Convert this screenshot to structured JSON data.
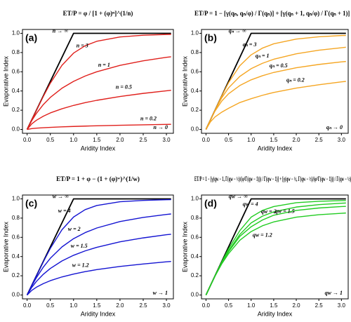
{
  "chart_data": [
    {
      "type": "line",
      "tag": "(a)",
      "equation": "ET/P = φ / [1 + (φ)ⁿ]^(1/n)",
      "x_label": "Aridity Index",
      "y_label": "Evaporative Index",
      "xlim": [
        -0.1,
        3.15
      ],
      "ylim": [
        -0.04,
        1.04
      ],
      "xticks": [
        {
          "value": 0,
          "label": "0.0"
        },
        0.5,
        {
          "value": 1,
          "label": "1.0"
        },
        1.5,
        {
          "value": 2,
          "label": "2.0"
        },
        2.5,
        {
          "value": 3,
          "label": "3.0"
        }
      ],
      "yticks": [
        {
          "value": 0,
          "label": "0.0"
        },
        0.2,
        0.4,
        0.6,
        0.8,
        {
          "value": 1,
          "label": "1.0"
        }
      ],
      "x": [
        0,
        0.1,
        0.2,
        0.35,
        0.5,
        0.75,
        1,
        1.25,
        1.5,
        2,
        2.5,
        3,
        3.1
      ],
      "series": [
        {
          "name": "n → ∞",
          "color": "#000000",
          "x": [
            0,
            1,
            3.1
          ],
          "values": [
            0,
            1,
            1
          ]
        },
        {
          "name": "n = 3",
          "color": "#e0201c",
          "values": [
            0,
            0.1,
            0.1995,
            0.345,
            0.481,
            0.667,
            0.794,
            0.871,
            0.917,
            0.962,
            0.98,
            0.988,
            0.989
          ]
        },
        {
          "name": "n = 1",
          "color": "#e0201c",
          "values": [
            0,
            0.0909,
            0.1667,
            0.2593,
            0.3333,
            0.4286,
            0.5,
            0.5556,
            0.6,
            0.6667,
            0.7143,
            0.75,
            0.7561
          ]
        },
        {
          "name": "n = 0.5",
          "color": "#e0201c",
          "values": [
            0,
            0.0577,
            0.0955,
            0.138,
            0.172,
            0.215,
            0.25,
            0.279,
            0.303,
            0.343,
            0.375,
            0.402,
            0.407
          ]
        },
        {
          "name": "n = 0.2",
          "color": "#e0201c",
          "values": [
            0,
            0.0087,
            0.0131,
            0.018,
            0.0218,
            0.027,
            0.03125,
            0.0349,
            0.0381,
            0.0437,
            0.0484,
            0.0525,
            0.0533
          ]
        }
      ],
      "annotation": "n → 0"
    },
    {
      "type": "line",
      "tag": "(b)",
      "equation": "ET/P = 1 − [γ(qₙ, qₙ/φ) / Γ(qₙ)] + [γ(qₙ + 1, qₙ/φ) / Γ(qₙ + 1)] φ",
      "x_label": "Aridity Index",
      "y_label": "Evaporative Index",
      "xlim": [
        -0.1,
        3.15
      ],
      "ylim": [
        -0.04,
        1.04
      ],
      "xticks": [
        {
          "value": 0,
          "label": "0.0"
        },
        0.5,
        {
          "value": 1,
          "label": "1.0"
        },
        1.5,
        {
          "value": 2,
          "label": "2.0"
        },
        2.5,
        {
          "value": 3,
          "label": "3.0"
        }
      ],
      "yticks": [
        {
          "value": 0,
          "label": "0.0"
        },
        0.2,
        0.4,
        0.6,
        0.8,
        {
          "value": 1,
          "label": "1.0"
        }
      ],
      "x": [
        0,
        0.1,
        0.2,
        0.35,
        0.5,
        0.75,
        1,
        1.25,
        1.5,
        2,
        2.5,
        3,
        3.1
      ],
      "series": [
        {
          "name": "qₙ → ∞",
          "color": "#000000",
          "x": [
            0,
            1,
            3.1
          ],
          "values": [
            0,
            1,
            1
          ]
        },
        {
          "name": "qₙ = 3",
          "color": "#f5a623",
          "values": [
            0,
            0.1,
            0.2,
            0.349,
            0.486,
            0.663,
            0.776,
            0.846,
            0.891,
            0.94,
            0.964,
            0.977,
            0.978
          ]
        },
        {
          "name": "qₙ = 1",
          "color": "#f5a623",
          "values": [
            0,
            0.1,
            0.1987,
            0.33,
            0.432,
            0.552,
            0.632,
            0.688,
            0.73,
            0.787,
            0.824,
            0.85,
            0.855
          ]
        },
        {
          "name": "qₙ = 0.5",
          "color": "#f5a623",
          "values": [
            0,
            0.0997,
            0.191,
            0.296,
            0.371,
            0.457,
            0.516,
            0.559,
            0.593,
            0.642,
            0.676,
            0.703,
            0.707
          ]
        },
        {
          "name": "qₙ = 0.2",
          "color": "#f5a623",
          "values": [
            0,
            0.08,
            0.13,
            0.18,
            0.22,
            0.28,
            0.32,
            0.355,
            0.385,
            0.43,
            0.465,
            0.495,
            0.5
          ]
        }
      ],
      "annotation": "qₙ → 0"
    },
    {
      "type": "line",
      "tag": "(c)",
      "equation": "ET/P = 1 + φ − (1 + (φ)ʷ)^(1/w)",
      "x_label": "Aridity Index",
      "y_label": "Evaporative Index",
      "xlim": [
        -0.1,
        3.15
      ],
      "ylim": [
        -0.04,
        1.04
      ],
      "xticks": [
        {
          "value": 0,
          "label": "0.0"
        },
        0.5,
        {
          "value": 1,
          "label": "1.0"
        },
        1.5,
        {
          "value": 2,
          "label": "2.0"
        },
        2.5,
        {
          "value": 3,
          "label": "3.0"
        }
      ],
      "yticks": [
        {
          "value": 0,
          "label": "0.0"
        },
        0.2,
        0.4,
        0.6,
        0.8,
        {
          "value": 1,
          "label": "1.0"
        }
      ],
      "x": [
        0,
        0.1,
        0.2,
        0.35,
        0.5,
        0.75,
        1,
        1.25,
        1.5,
        2,
        2.5,
        3,
        3.1
      ],
      "series": [
        {
          "name": "w → ∞",
          "color": "#000000",
          "x": [
            0,
            1,
            3.1
          ],
          "values": [
            0,
            1,
            1
          ]
        },
        {
          "name": "w = 4",
          "color": "#1414d2",
          "values": [
            0,
            0.1,
            0.1996,
            0.346,
            0.485,
            0.679,
            0.811,
            0.888,
            0.931,
            0.97,
            0.984,
            0.991,
            0.992
          ]
        },
        {
          "name": "w = 2",
          "color": "#1414d2",
          "values": [
            0,
            0.095,
            0.18,
            0.291,
            0.382,
            0.5,
            0.586,
            0.649,
            0.697,
            0.764,
            0.807,
            0.838,
            0.843
          ]
        },
        {
          "name": "w = 1.5",
          "color": "#1414d2",
          "values": [
            0,
            0.079,
            0.141,
            0.216,
            0.276,
            0.354,
            0.413,
            0.459,
            0.496,
            0.553,
            0.594,
            0.627,
            0.632
          ]
        },
        {
          "name": "w = 1.2",
          "color": "#1414d2",
          "values": [
            0,
            0.048,
            0.081,
            0.119,
            0.149,
            0.188,
            0.218,
            0.243,
            0.264,
            0.297,
            0.323,
            0.345,
            0.349
          ]
        }
      ],
      "annotation": "w → 1"
    },
    {
      "type": "line",
      "tag": "(d)",
      "equation": "ET/P = 1 − [γ(qw − 1, Γ(qw − ½)/(φ²Γ(qw − 1))) / Γ(qw − 1)] + [γ(qw − ½, Γ(qw − ½)/(φ²Γ(qw − 1))) / Γ(qw − ½)] φ",
      "x_label": "Aridity Index",
      "y_label": "Evaporative Index",
      "xlim": [
        -0.1,
        3.15
      ],
      "ylim": [
        -0.04,
        1.04
      ],
      "xticks": [
        {
          "value": 0,
          "label": "0.0"
        },
        0.5,
        {
          "value": 1,
          "label": "1.0"
        },
        1.5,
        {
          "value": 2,
          "label": "2.0"
        },
        2.5,
        {
          "value": 3,
          "label": "3.0"
        }
      ],
      "yticks": [
        {
          "value": 0,
          "label": "0.0"
        },
        0.2,
        0.4,
        0.6,
        0.8,
        {
          "value": 1,
          "label": "1.0"
        }
      ],
      "x": [
        0,
        0.1,
        0.2,
        0.35,
        0.5,
        0.75,
        1,
        1.25,
        1.5,
        2,
        2.5,
        3,
        3.1
      ],
      "series": [
        {
          "name": "qw → ∞",
          "color": "#000000",
          "x": [
            0,
            1,
            3.1
          ],
          "values": [
            0,
            1,
            1
          ]
        },
        {
          "name": "qw = 4",
          "color": "#22cc22",
          "values": [
            0,
            0.1,
            0.2,
            0.345,
            0.48,
            0.67,
            0.81,
            0.88,
            0.92,
            0.96,
            0.975,
            0.982,
            0.983
          ]
        },
        {
          "name": "qw = 2",
          "color": "#22cc22",
          "values": [
            0,
            0.1,
            0.199,
            0.34,
            0.46,
            0.63,
            0.75,
            0.82,
            0.865,
            0.915,
            0.94,
            0.955,
            0.957
          ]
        },
        {
          "name": "qw = 1.5",
          "color": "#22cc22",
          "values": [
            0,
            0.1,
            0.198,
            0.335,
            0.45,
            0.61,
            0.71,
            0.78,
            0.83,
            0.88,
            0.905,
            0.92,
            0.922
          ]
        },
        {
          "name": "qw = 1.2",
          "color": "#22cc22",
          "values": [
            0,
            0.1,
            0.196,
            0.325,
            0.43,
            0.57,
            0.66,
            0.72,
            0.76,
            0.81,
            0.835,
            0.85,
            0.853
          ]
        }
      ],
      "annotation": "qw → 1"
    }
  ]
}
